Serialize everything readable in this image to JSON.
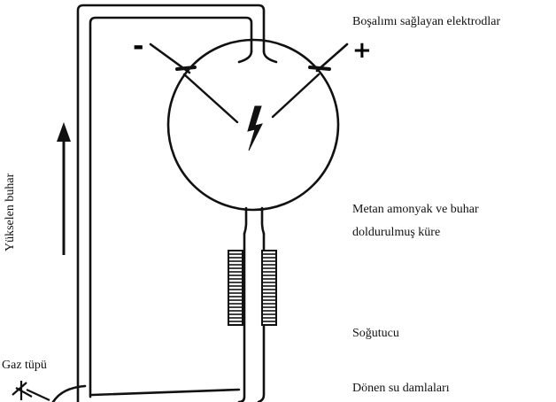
{
  "labels": {
    "electrodes": "Boşalımı sağlayan elektrodlar",
    "flask_line1": "Metan amonyak ve buhar",
    "flask_line2": "doldurulmuş küre",
    "cooler": "Soğutucu",
    "gas_tube": "Gaz tüpü",
    "droplets": "Dönen su damlaları",
    "rising_vapor": "Yükselen buhar"
  },
  "signs": {
    "negative": "-",
    "positive": "+"
  },
  "colors": {
    "ink": "#111111",
    "background": "#ffffff"
  },
  "icons": {
    "spark": "lightning-bolt-icon",
    "flow": "up-arrow-icon",
    "valve": "valve-icon"
  }
}
